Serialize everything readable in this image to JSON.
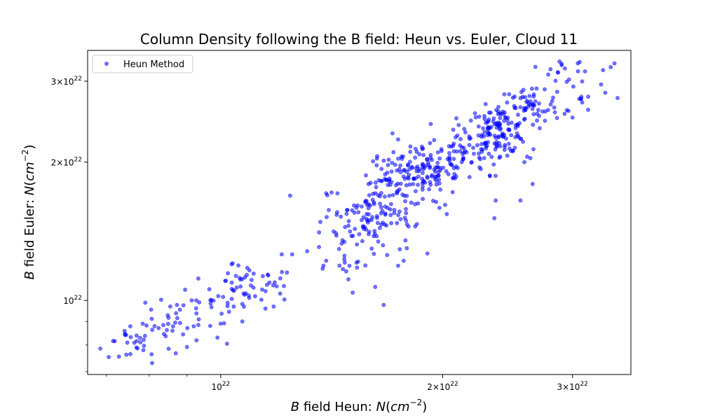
{
  "chart_data": {
    "type": "scatter",
    "title": "Column Density following the B field: Heun vs. Euler, Cloud 11",
    "xlabel": "B field Heun: N(cm^-2)",
    "ylabel": "B field Euler: N(cm^-2)",
    "xscale": "log",
    "yscale": "log",
    "xlim": [
      6.6e+21,
      3.6e+22
    ],
    "ylim": [
      6.9e+21,
      3.5e+22
    ],
    "x_ticks": [
      {
        "value": 1e+22,
        "mant": "",
        "exp": "22"
      },
      {
        "value": 2e+22,
        "mant": "2",
        "exp": "22"
      },
      {
        "value": 3e+22,
        "mant": "3",
        "exp": "22"
      }
    ],
    "y_ticks": [
      {
        "value": 1e+22,
        "mant": "",
        "exp": "22"
      },
      {
        "value": 2e+22,
        "mant": "2",
        "exp": "22"
      },
      {
        "value": 3e+22,
        "mant": "3",
        "exp": "22"
      }
    ],
    "grid": false,
    "legend_position": "top-left",
    "color": "#0000ff",
    "series": [
      {
        "name": "Heun Method",
        "clusters": [
          {
            "center": [
              7.55e+21,
              8.05e+21
            ],
            "spread": [
              0.02,
              0.02
            ],
            "count": 14
          },
          {
            "center": [
              8.2e+21,
              8.5e+21
            ],
            "spread": [
              0.022,
              0.025
            ],
            "count": 24
          },
          {
            "center": [
              8.9e+21,
              9.2e+21
            ],
            "spread": [
              0.025,
              0.025
            ],
            "count": 24
          },
          {
            "center": [
              9.6e+21,
              9.5e+21
            ],
            "spread": [
              0.02,
              0.028
            ],
            "count": 12
          },
          {
            "center": [
              1.04e+22,
              1.03e+22
            ],
            "spread": [
              0.018,
              0.02
            ],
            "count": 14
          },
          {
            "center": [
              1.09e+22,
              1.09e+22
            ],
            "spread": [
              0.018,
              0.02
            ],
            "count": 26
          },
          {
            "center": [
              1.15e+22,
              1.1e+22
            ],
            "spread": [
              0.02,
              0.035
            ],
            "count": 12
          },
          {
            "center": [
              1.48e+22,
              1.35e+22
            ],
            "spread": [
              0.035,
              0.05
            ],
            "count": 30
          },
          {
            "center": [
              1.58e+22,
              1.52e+22
            ],
            "spread": [
              0.03,
              0.04
            ],
            "count": 60
          },
          {
            "center": [
              1.67e+22,
              1.68e+22
            ],
            "spread": [
              0.025,
              0.04
            ],
            "count": 40
          },
          {
            "center": [
              1.78e+22,
              1.84e+22
            ],
            "spread": [
              0.025,
              0.03
            ],
            "count": 90
          },
          {
            "center": [
              1.97e+22,
              1.93e+22
            ],
            "spread": [
              0.022,
              0.03
            ],
            "count": 60
          },
          {
            "center": [
              2.15e+22,
              2.08e+22
            ],
            "spread": [
              0.022,
              0.03
            ],
            "count": 50
          },
          {
            "center": [
              2.38e+22,
              2.35e+22
            ],
            "spread": [
              0.02,
              0.025
            ],
            "count": 120
          },
          {
            "center": [
              2.62e+22,
              2.63e+22
            ],
            "spread": [
              0.02,
              0.025
            ],
            "count": 50
          },
          {
            "center": [
              2.98e+22,
              2.92e+22
            ],
            "spread": [
              0.03,
              0.04
            ],
            "count": 28
          },
          {
            "center": [
              1.7e+22,
              1.45e+22
            ],
            "spread": [
              0.05,
              0.06
            ],
            "count": 20
          },
          {
            "center": [
              2.3e+22,
              2e+22
            ],
            "spread": [
              0.04,
              0.05
            ],
            "count": 16
          }
        ],
        "points": [
          [
            7.05e+21,
            7.53e+21
          ],
          [
            7.45e+21,
            7.62e+21
          ],
          [
            7.42e+21,
            8.41e+21
          ],
          [
            8.5e+21,
            7.85e+21
          ],
          [
            9e+21,
            7.92e+21
          ],
          [
            8.95e+21,
            1.055e+22
          ],
          [
            9.9e+21,
            8.3e+21
          ],
          [
            1.02e+22,
            8.05e+21
          ],
          [
            1e+22,
            8.9e+21
          ],
          [
            1.07e+22,
            9e+21
          ],
          [
            1.15e+22,
            9.6e+21
          ],
          [
            1.18e+22,
            9.7e+21
          ],
          [
            1.22e+22,
            1.005e+22
          ],
          [
            1.23e+22,
            1.15e+22
          ],
          [
            1.25e+22,
            1.26e+22
          ],
          [
            1.21e+22,
            1.26e+22
          ],
          [
            1.31e+22,
            1.28e+22
          ],
          [
            1.39e+22,
            1.22e+22
          ],
          [
            1.39e+22,
            1.71e+22
          ],
          [
            1.44e+22,
            1.71e+22
          ],
          [
            1.62e+22,
            1.07e+22
          ],
          [
            1.51e+22,
            1.04e+22
          ],
          [
            1.74e+22,
            1.19e+22
          ],
          [
            1.98e+22,
            1.59e+22
          ],
          [
            2.63e+22,
            2.04e+22
          ],
          [
            2.75e+22,
            2.88e+22
          ],
          [
            2.9e+22,
            3.25e+22
          ],
          [
            2.88e+22,
            3.31e+22
          ],
          [
            3.05e+22,
            3.28e+22
          ],
          [
            3.12e+22,
            3.15e+22
          ],
          [
            3.3e+22,
            3.17e+22
          ],
          [
            3.28e+22,
            2.95e+22
          ],
          [
            3.38e+22,
            3.22e+22
          ],
          [
            3.42e+22,
            3.28e+22
          ],
          [
            3.08e+22,
            2.75e+22
          ],
          [
            3.15e+22,
            2.6e+22
          ],
          [
            3e+22,
            2.5e+22
          ],
          [
            2.55e+22,
            1.65e+22
          ],
          [
            2.36e+22,
            1.65e+22
          ],
          [
            2.35e+22,
            1.51e+22
          ],
          [
            1.71e+22,
            2.31e+22
          ],
          [
            1.74e+22,
            2.24e+22
          ],
          [
            1.63e+22,
            2.06e+22
          ],
          [
            1.86e+22,
            2.08e+22
          ]
        ]
      }
    ]
  },
  "legend": {
    "label": "Heun Method"
  },
  "labels": {
    "title": "Column Density following the B field: Heun vs. Euler, Cloud 11",
    "x_italic": "B",
    "x_text": " field Heun: ",
    "y_italic": "B",
    "y_text": " field Euler: ",
    "n": "N",
    "open": "(",
    "cm": "cm",
    "exp": "−2",
    "close": ")",
    "ten": "10",
    "times": "×"
  }
}
